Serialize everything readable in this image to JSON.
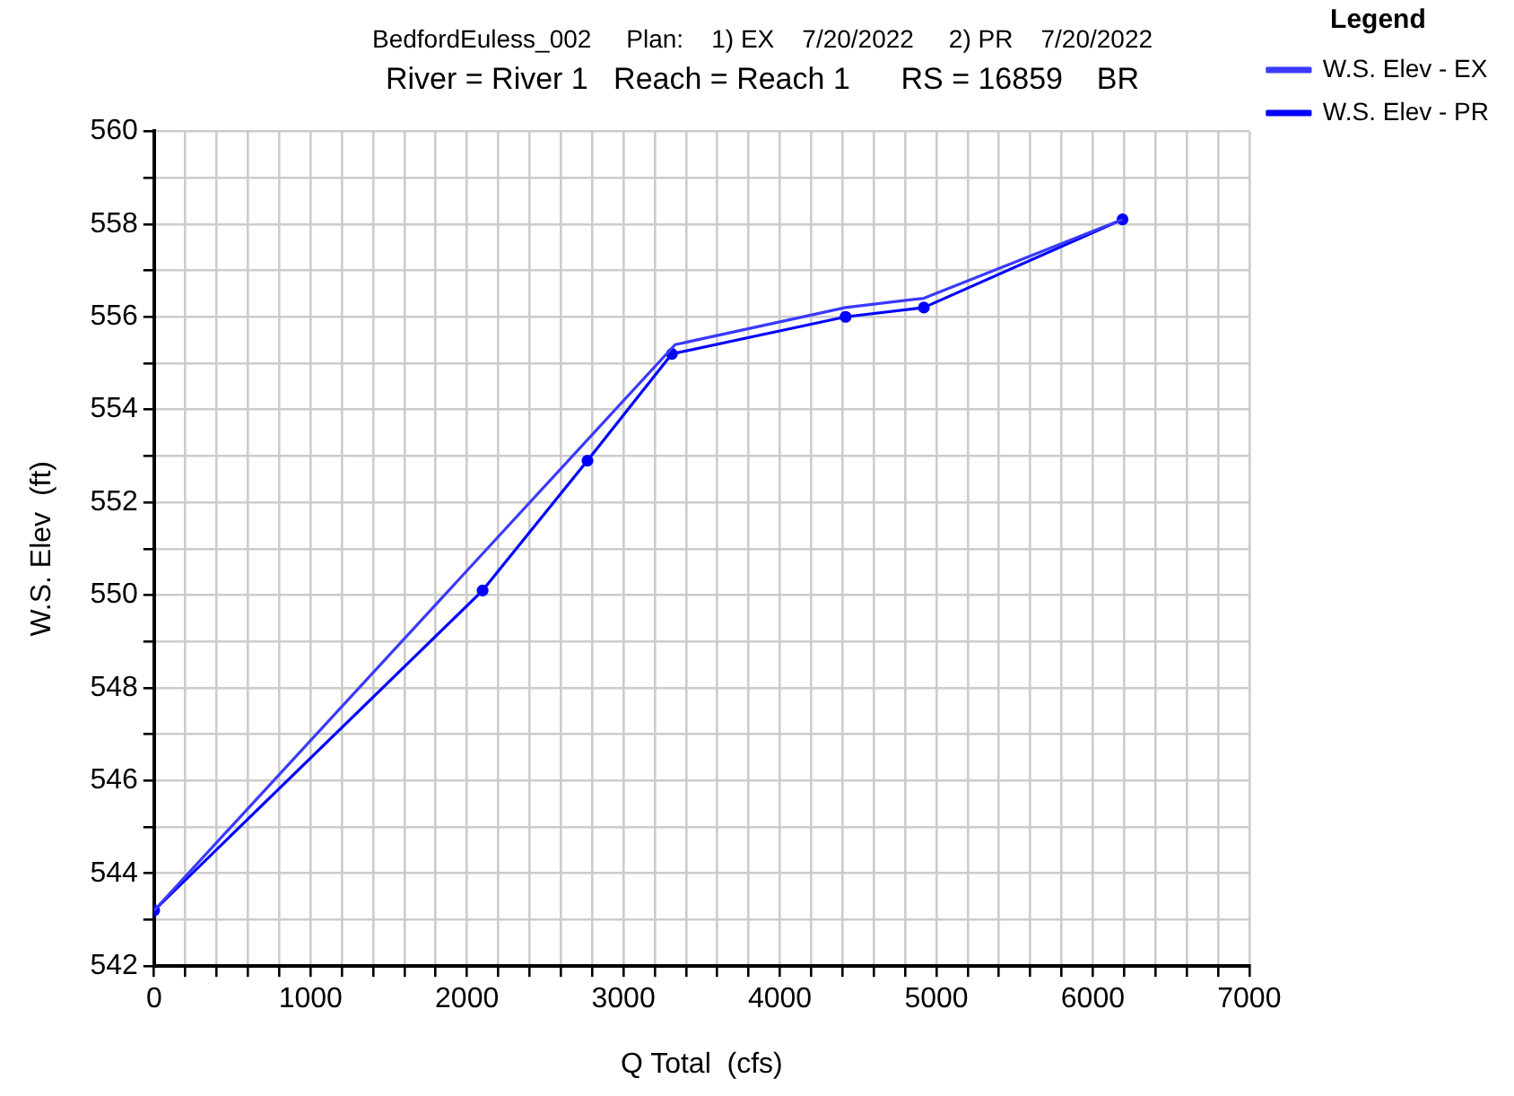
{
  "chart_data": {
    "type": "line",
    "title": "BedfordEuless_002     Plan:    1) EX    7/20/2022     2) PR    7/20/2022",
    "subtitle": "River = River 1   Reach = Reach 1      RS = 16859    BR",
    "xlabel": "Q Total  (cfs)",
    "ylabel": "W.S. Elev  (ft)",
    "legend_title": "Legend",
    "legend": "right",
    "grid": true,
    "series": [
      {
        "name": "W.S. Elev - EX",
        "color": "#3a3aff",
        "marker": "none",
        "x": [
          0,
          3330,
          4420,
          4920,
          6190
        ],
        "values": [
          543.2,
          555.4,
          556.2,
          556.4,
          558.1
        ]
      },
      {
        "name": "W.S. Elev - PR",
        "color": "#0000ff",
        "marker": "circle",
        "x": [
          0,
          2100,
          2770,
          3310,
          4420,
          4920,
          6190
        ],
        "values": [
          543.2,
          550.1,
          552.9,
          555.2,
          556.0,
          556.2,
          558.1
        ]
      }
    ],
    "xlim": [
      0,
      7000
    ],
    "xticks": [
      0,
      {
        "value": 200,
        "label": null
      },
      {
        "value": 400,
        "label": null
      },
      {
        "value": 600,
        "label": null
      },
      {
        "value": 800,
        "label": null
      },
      1000,
      {
        "value": 1200,
        "label": null
      },
      {
        "value": 1400,
        "label": null
      },
      {
        "value": 1600,
        "label": null
      },
      {
        "value": 1800,
        "label": null
      },
      2000,
      {
        "value": 2200,
        "label": null
      },
      {
        "value": 2400,
        "label": null
      },
      {
        "value": 2600,
        "label": null
      },
      {
        "value": 2800,
        "label": null
      },
      3000,
      {
        "value": 3200,
        "label": null
      },
      {
        "value": 3400,
        "label": null
      },
      {
        "value": 3600,
        "label": null
      },
      {
        "value": 3800,
        "label": null
      },
      4000,
      {
        "value": 4200,
        "label": null
      },
      {
        "value": 4400,
        "label": null
      },
      {
        "value": 4600,
        "label": null
      },
      {
        "value": 4800,
        "label": null
      },
      5000,
      {
        "value": 5200,
        "label": null
      },
      {
        "value": 5400,
        "label": null
      },
      {
        "value": 5600,
        "label": null
      },
      {
        "value": 5800,
        "label": null
      },
      6000,
      {
        "value": 6200,
        "label": null
      },
      {
        "value": 6400,
        "label": null
      },
      {
        "value": 6600,
        "label": null
      },
      {
        "value": 6800,
        "label": null
      },
      7000
    ],
    "ylim": [
      542,
      560
    ],
    "yticks": [
      542,
      {
        "value": 543,
        "label": null
      },
      544,
      {
        "value": 545,
        "label": null
      },
      546,
      {
        "value": 547,
        "label": null
      },
      548,
      {
        "value": 549,
        "label": null
      },
      550,
      {
        "value": 551,
        "label": null
      },
      552,
      {
        "value": 553,
        "label": null
      },
      554,
      {
        "value": 555,
        "label": null
      },
      556,
      {
        "value": 557,
        "label": null
      },
      558,
      {
        "value": 559,
        "label": null
      },
      560
    ]
  }
}
